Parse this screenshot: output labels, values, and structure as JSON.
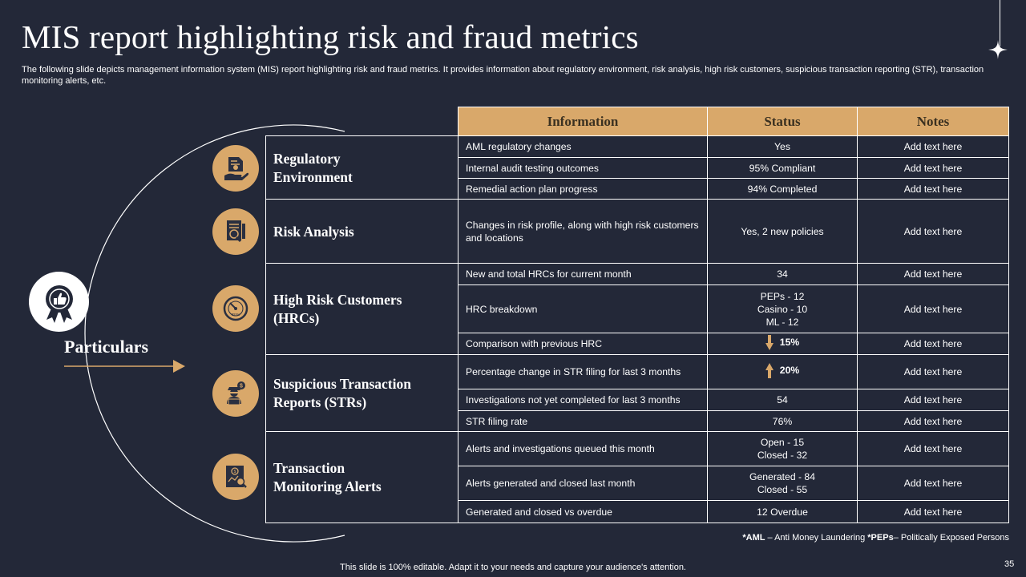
{
  "title": "MIS report highlighting risk and fraud metrics",
  "subtitle": "The following slide depicts management information system (MIS) report highlighting risk and fraud metrics. It provides information about regulatory environment, risk analysis, high risk customers, suspicious transaction reporting (STR), transaction monitoring alerts, etc.",
  "particulars_label": "Particulars",
  "colors": {
    "background": "#232838",
    "accent": "#D9A86A",
    "line": "#FFFFFF"
  },
  "categories": [
    {
      "label": "Regulatory Environment",
      "icon": "regulatory-document-icon"
    },
    {
      "label": "Risk Analysis",
      "icon": "risk-analysis-document-icon"
    },
    {
      "label": "High Risk Customers (HRCs)",
      "icon": "risk-gauge-icon"
    },
    {
      "label": "Suspicious Transaction Reports (STRs)",
      "icon": "hacker-laptop-icon"
    },
    {
      "label": "Transaction Monitoring Alerts",
      "icon": "monitoring-report-icon"
    }
  ],
  "table": {
    "headers": [
      "Information",
      "Status",
      "Notes"
    ],
    "rows": [
      {
        "info": "AML regulatory  changes",
        "status": "Yes",
        "notes": "Add text here"
      },
      {
        "info": "Internal  audit testing outcomes",
        "status": "95% Compliant",
        "notes": "Add text here"
      },
      {
        "info": "Remedial  action plan progress",
        "status": "94% Completed",
        "notes": "Add text here"
      },
      {
        "info": "Changes  in risk profile,  along with high risk customers and locations",
        "status": "Yes, 2 new policies",
        "notes": "Add text here"
      },
      {
        "info": "New and total HRCs for current month",
        "status": "34",
        "notes": "Add text here"
      },
      {
        "info": "HRC  breakdown",
        "status": "PEPs - 12\nCasino - 10\nML - 12",
        "notes": "Add text here"
      },
      {
        "info": "Comparison  with  previous  HRC",
        "status": "15%",
        "status_arrow": "down",
        "notes": "Add text here"
      },
      {
        "info": "Percentage  change in STR filing for last 3 months",
        "status": "20%",
        "status_arrow": "up",
        "notes": "Add text here"
      },
      {
        "info": "Investigations  not yet completed for last 3 months",
        "status": "54",
        "notes": "Add text here"
      },
      {
        "info": "STR filing rate",
        "status": "76%",
        "notes": "Add text here"
      },
      {
        "info": "Alerts and investigations  queued  this month",
        "status": "Open - 15\nClosed - 32",
        "notes": "Add text here"
      },
      {
        "info": "Alerts generated  and closed last month",
        "status": "Generated - 84\nClosed - 55",
        "notes": "Add text here"
      },
      {
        "info": "Generated  and closed vs overdue",
        "status": "12 Overdue",
        "notes": "Add text here"
      }
    ]
  },
  "footnote": {
    "aml_abbr": "*AML",
    "aml_text": " – Anti Money Laundering ",
    "peps_abbr": "*PEPs",
    "peps_text": "– Politically Exposed Persons"
  },
  "footer": "This slide is 100% editable. Adapt it to your needs and capture your audience's attention.",
  "page_number": "35"
}
